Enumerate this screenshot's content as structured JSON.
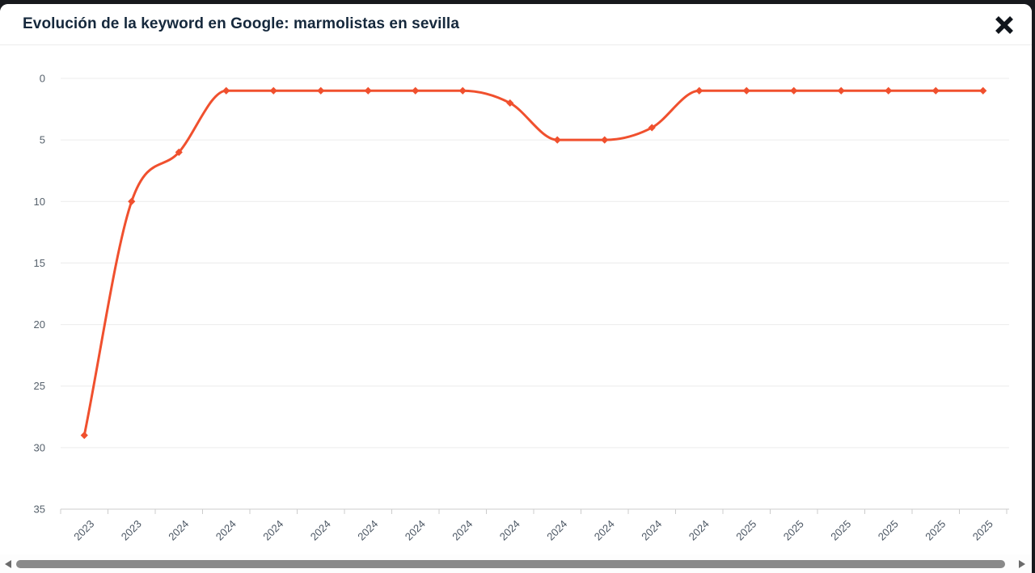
{
  "modal": {
    "header": {
      "title": "Evolución de la keyword en Google: marmolistas en sevilla"
    }
  },
  "chart_data": {
    "type": "line",
    "title": "Evolución de la keyword en Google: marmolistas en sevilla",
    "x_labels": [
      "2023",
      "2023",
      "2024",
      "2024",
      "2024",
      "2024",
      "2024",
      "2024",
      "2024",
      "2024",
      "2024",
      "2024",
      "2024",
      "2024",
      "2025",
      "2025",
      "2025",
      "2025",
      "2025",
      "2025"
    ],
    "values": [
      29,
      10,
      6,
      1,
      1,
      1,
      1,
      1,
      1,
      2,
      5,
      5,
      4,
      1,
      1,
      1,
      1,
      1,
      1,
      1
    ],
    "y_ticks": [
      0,
      5,
      10,
      15,
      20,
      25,
      30,
      35
    ],
    "ylim": [
      0,
      35
    ],
    "y_axis_inverted": true,
    "smooth": true,
    "marker": "diamond",
    "grid": true,
    "legend": false,
    "colors": {
      "line": "#f0502e",
      "grid": "#ececec",
      "axis": "#cccccc",
      "tick_label": "#55606b"
    }
  },
  "scrollbar": {
    "orientation": "horizontal",
    "left_arrow": "left",
    "right_arrow": "right"
  },
  "theme": {
    "page_background": "#17191d",
    "modal_background": "#ffffff",
    "title_color": "#15283c",
    "close_color": "#10151c",
    "scroll_thumb": "#8a8a8a"
  }
}
